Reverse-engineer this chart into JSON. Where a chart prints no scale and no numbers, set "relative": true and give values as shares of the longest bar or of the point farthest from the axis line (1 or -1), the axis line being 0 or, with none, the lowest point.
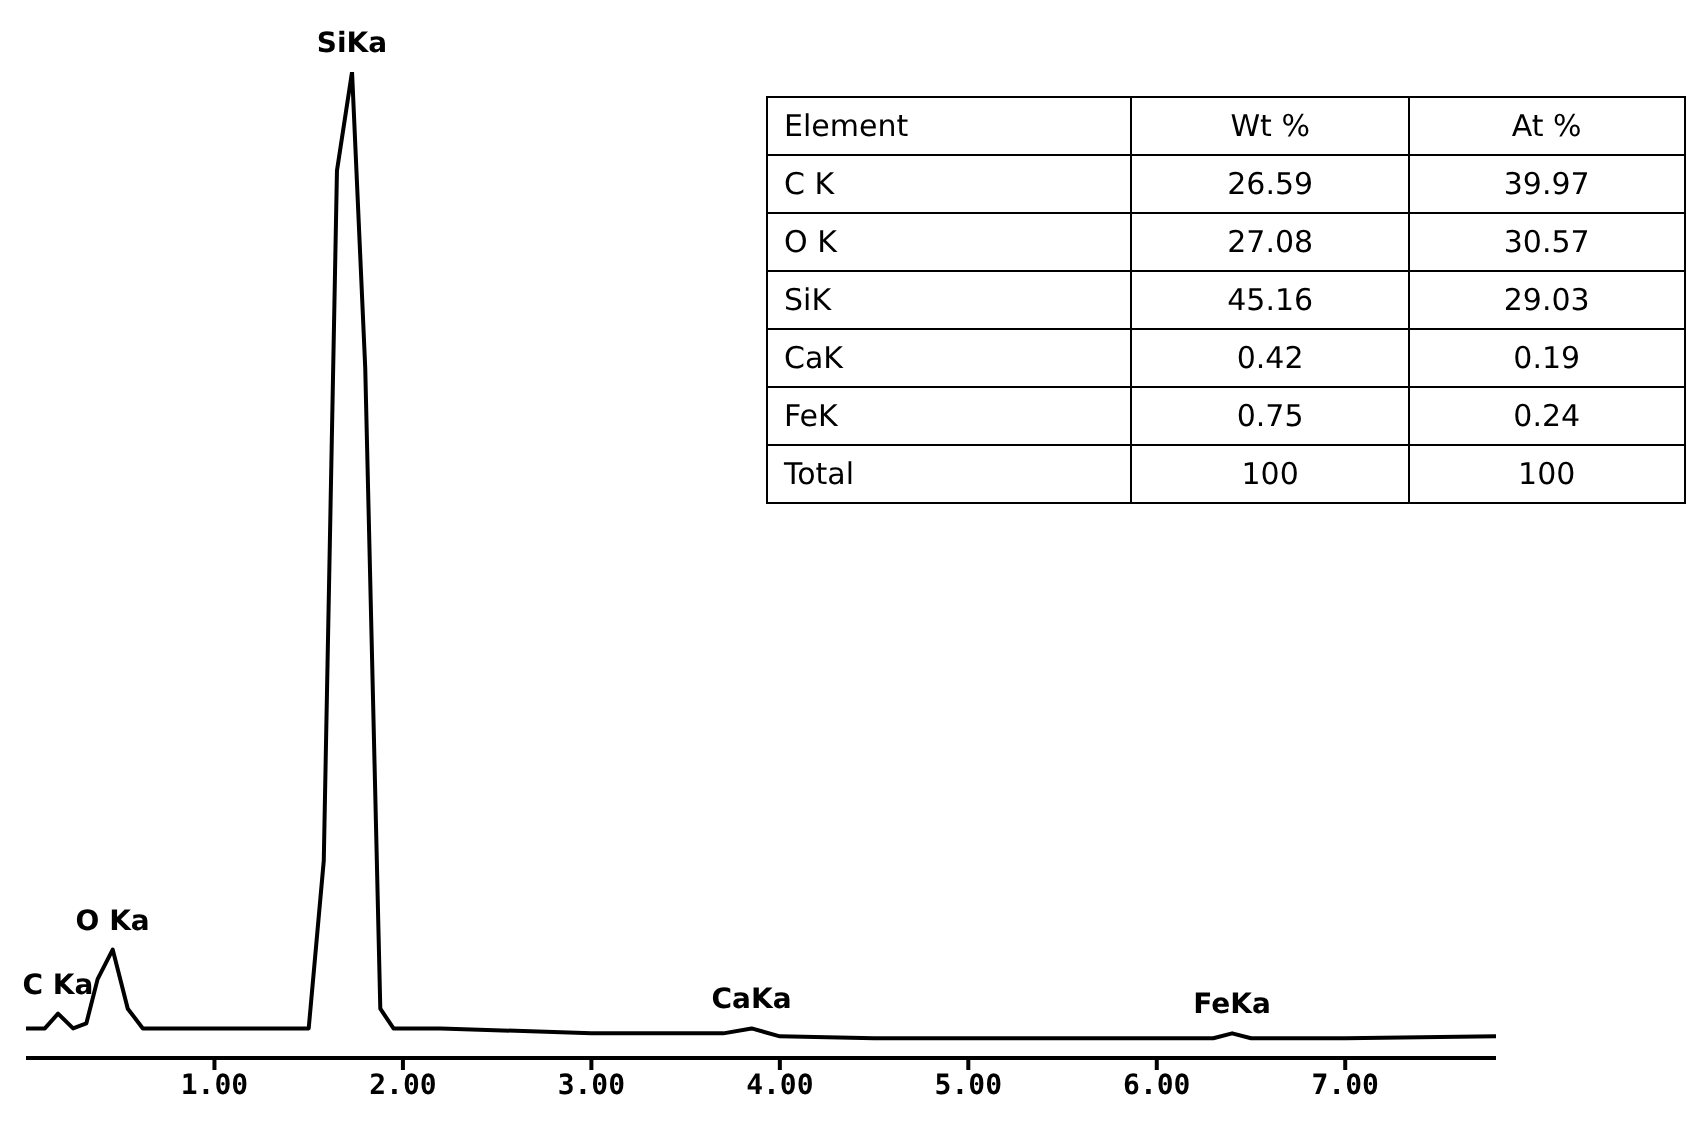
{
  "chart_data": [
    {
      "type": "line",
      "relative": true,
      "x": [
        0,
        0.1,
        0.17,
        0.25,
        0.32,
        0.38,
        0.46,
        0.54,
        0.62,
        0.8,
        1.0,
        1.3,
        1.5,
        1.58,
        1.65,
        1.73,
        1.8,
        1.88,
        1.95,
        2.2,
        3.0,
        3.7,
        3.85,
        4.0,
        4.5,
        5.5,
        6.3,
        6.4,
        6.5,
        7.0,
        7.8
      ],
      "series": [
        {
          "color": "#000000",
          "values": [
            0.03,
            0.03,
            0.045,
            0.03,
            0.035,
            0.08,
            0.11,
            0.05,
            0.03,
            0.03,
            0.03,
            0.03,
            0.03,
            0.2,
            0.9,
            1.0,
            0.7,
            0.05,
            0.03,
            0.03,
            0.025,
            0.025,
            0.03,
            0.022,
            0.02,
            0.02,
            0.02,
            0.025,
            0.02,
            0.02,
            0.022
          ]
        }
      ],
      "xlim": [
        0,
        7.8
      ],
      "xticks": [
        {
          "value": 1,
          "label": "1.00"
        },
        {
          "value": 2,
          "label": "2.00"
        },
        {
          "value": 3,
          "label": "3.00"
        },
        {
          "value": 4,
          "label": "4.00"
        },
        {
          "value": 5,
          "label": "5.00"
        },
        {
          "value": 6,
          "label": "6.00"
        },
        {
          "value": 7,
          "label": "7.00"
        }
      ],
      "annotations": [
        {
          "text": "C Ka",
          "x": 0.17,
          "y": 0.045
        },
        {
          "text": "O Ka",
          "x": 0.46,
          "y": 0.11
        },
        {
          "text": "SiKa",
          "x": 1.73,
          "y": 1.0
        },
        {
          "text": "CaKa",
          "x": 3.85,
          "y": 0.03
        },
        {
          "text": "FeKa",
          "x": 6.4,
          "y": 0.025
        }
      ]
    },
    {
      "type": "other",
      "xlabel": "Element",
      "categories": [
        "C K",
        "O K",
        "SiK",
        "CaK",
        "FeK",
        "Total"
      ],
      "data_labels": true,
      "series": [
        {
          "name": "Wt %",
          "values": [
            26.59,
            27.08,
            45.16,
            0.42,
            0.75,
            100
          ]
        },
        {
          "name": "At %",
          "values": [
            39.97,
            30.57,
            29.03,
            0.19,
            0.24,
            100
          ]
        }
      ]
    }
  ]
}
